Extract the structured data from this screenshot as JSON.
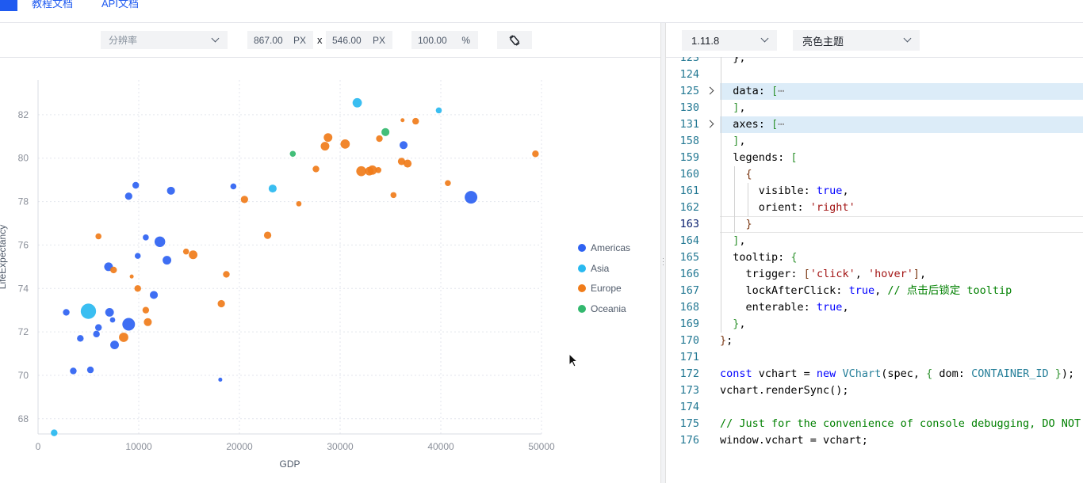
{
  "nav": {
    "tabs": [
      {
        "label": "教程文档"
      },
      {
        "label": "API文档"
      }
    ]
  },
  "preview_toolbar": {
    "resolution_placeholder": "分辨率",
    "width_value": "867.00",
    "height_value": "546.00",
    "unit": "PX",
    "separator": "x",
    "zoom_value": "100.00",
    "zoom_unit": "%",
    "rotate_icon": "rotate-icon"
  },
  "editor_toolbar": {
    "version": "1.11.8",
    "theme": "亮色主题"
  },
  "colors": {
    "accent": "#1f5af0",
    "Americas": "#2e62f2",
    "Asia": "#29b9f0",
    "Europe": "#f07c1a",
    "Oceania": "#33b86e"
  },
  "chart_data": {
    "type": "scatter",
    "xlabel": "GDP",
    "ylabel": "LifeExpectancy",
    "xlim": [
      0,
      50000
    ],
    "ylim": [
      67.3,
      83.6
    ],
    "x_ticks": [
      "0",
      "10000",
      "20000",
      "30000",
      "40000",
      "50000"
    ],
    "y_ticks": [
      "68",
      "70",
      "72",
      "74",
      "76",
      "78",
      "80",
      "82"
    ],
    "grid": true,
    "legend_placement": "right",
    "legend": [
      {
        "name": "Americas"
      },
      {
        "name": "Asia"
      },
      {
        "name": "Europe"
      },
      {
        "name": "Oceania"
      }
    ],
    "series": [
      {
        "name": "Americas",
        "points": [
          [
            2800,
            72.9,
            1
          ],
          [
            3500,
            70.2,
            1
          ],
          [
            4200,
            71.7,
            1
          ],
          [
            5200,
            70.25,
            1
          ],
          [
            5800,
            71.9,
            1
          ],
          [
            6000,
            72.2,
            1
          ],
          [
            7000,
            75,
            1.3
          ],
          [
            7100,
            72.9,
            1.3
          ],
          [
            7400,
            72.55,
            0.8
          ],
          [
            7600,
            71.4,
            1.3
          ],
          [
            9000,
            72.35,
            1.9
          ],
          [
            9000,
            78.25,
            1.1
          ],
          [
            9700,
            78.75,
            1
          ],
          [
            9900,
            75.5,
            0.9
          ],
          [
            10700,
            76.35,
            0.9
          ],
          [
            11500,
            73.7,
            1.2
          ],
          [
            12100,
            76.15,
            1.6
          ],
          [
            12800,
            75.3,
            1.3
          ],
          [
            13200,
            78.5,
            1.2
          ],
          [
            18100,
            69.8,
            0.6
          ],
          [
            19400,
            78.7,
            0.9
          ],
          [
            36300,
            80.6,
            1.2
          ],
          [
            43000,
            78.2,
            1.9
          ]
        ]
      },
      {
        "name": "Asia",
        "points": [
          [
            1600,
            67.35,
            1
          ],
          [
            5000,
            72.95,
            2.3
          ],
          [
            23300,
            78.6,
            1.2
          ],
          [
            31700,
            82.55,
            1.4
          ],
          [
            39800,
            82.2,
            0.9
          ]
        ]
      },
      {
        "name": "Europe",
        "points": [
          [
            6000,
            76.4,
            0.9
          ],
          [
            7500,
            74.85,
            1
          ],
          [
            8500,
            71.75,
            1.4
          ],
          [
            9300,
            74.55,
            0.6
          ],
          [
            9900,
            74,
            1
          ],
          [
            10700,
            73,
            1
          ],
          [
            10900,
            72.45,
            1.2
          ],
          [
            14700,
            75.7,
            0.9
          ],
          [
            15400,
            75.55,
            1.3
          ],
          [
            18200,
            73.3,
            1.1
          ],
          [
            18700,
            74.65,
            1
          ],
          [
            20500,
            78.1,
            1.1
          ],
          [
            22800,
            76.45,
            1.1
          ],
          [
            25900,
            77.9,
            0.8
          ],
          [
            27600,
            79.5,
            1
          ],
          [
            28500,
            80.55,
            1.3
          ],
          [
            28800,
            80.95,
            1.3
          ],
          [
            30500,
            80.65,
            1.4
          ],
          [
            32100,
            79.4,
            1.5
          ],
          [
            32900,
            79.4,
            1.3
          ],
          [
            33200,
            79.45,
            1.4
          ],
          [
            33800,
            79.45,
            0.9
          ],
          [
            33900,
            80.9,
            1
          ],
          [
            35300,
            78.3,
            0.9
          ],
          [
            36100,
            79.85,
            1.1
          ],
          [
            36200,
            81.75,
            0.6
          ],
          [
            36700,
            79.75,
            1.2
          ],
          [
            37500,
            81.7,
            1
          ],
          [
            40700,
            78.85,
            0.9
          ],
          [
            49400,
            80.2,
            1
          ]
        ]
      },
      {
        "name": "Oceania",
        "points": [
          [
            25300,
            80.2,
            0.9
          ],
          [
            34500,
            81.2,
            1.2
          ]
        ]
      }
    ]
  },
  "code": [
    {
      "n": "123",
      "html": "  },"
    },
    {
      "n": "124",
      "html": ""
    },
    {
      "n": "125",
      "html": "  data: <span class=\"b\">[</span><span style=\"color:#888\">⋯</span>",
      "hl": true,
      "fold": true
    },
    {
      "n": "130",
      "html": "  <span class=\"b\">]</span>,"
    },
    {
      "n": "131",
      "html": "  axes: <span class=\"b\">[</span><span style=\"color:#888\">⋯</span>",
      "hl": true,
      "fold": true
    },
    {
      "n": "158",
      "html": "  <span class=\"b\">]</span>,"
    },
    {
      "n": "159",
      "html": "  legends: <span class=\"b\">[</span>"
    },
    {
      "n": "160",
      "html": "    <span class=\"br2\">{</span>"
    },
    {
      "n": "161",
      "html": "      visible: <span class=\"k\">true</span>,"
    },
    {
      "n": "162",
      "html": "      orient: <span class=\"s\">'right'</span>"
    },
    {
      "n": "163",
      "html": "    <span class=\"br2\">}</span>",
      "cur": true
    },
    {
      "n": "164",
      "html": "  <span class=\"b\">]</span>,"
    },
    {
      "n": "165",
      "html": "  tooltip: <span class=\"b\">{</span>"
    },
    {
      "n": "166",
      "html": "    trigger: <span class=\"br2\">[</span><span class=\"s\">'click'</span>, <span class=\"s\">'hover'</span><span class=\"br2\">]</span>,"
    },
    {
      "n": "167",
      "html": "    lockAfterClick: <span class=\"k\">true</span>, <span class=\"c\">// 点击后锁定 tooltip</span>"
    },
    {
      "n": "168",
      "html": "    enterable: <span class=\"k\">true</span>,"
    },
    {
      "n": "169",
      "html": "  <span class=\"b\">}</span>,"
    },
    {
      "n": "170",
      "html": "<span class=\"br2\">}</span>;"
    },
    {
      "n": "171",
      "html": ""
    },
    {
      "n": "172",
      "html": "<span class=\"k\">const</span> vchart = <span class=\"k\">new</span> <span class=\"p\">VChart</span>(spec, <span class=\"b\">{</span> dom: <span class=\"p\">CONTAINER_ID</span> <span class=\"b\">}</span>);"
    },
    {
      "n": "173",
      "html": "vchart.renderSync();"
    },
    {
      "n": "174",
      "html": ""
    },
    {
      "n": "175",
      "html": "<span class=\"c\">// Just for the convenience of console debugging, DO NOT COPY!</span>"
    },
    {
      "n": "176",
      "html": "window.vchart = vchart;"
    }
  ]
}
